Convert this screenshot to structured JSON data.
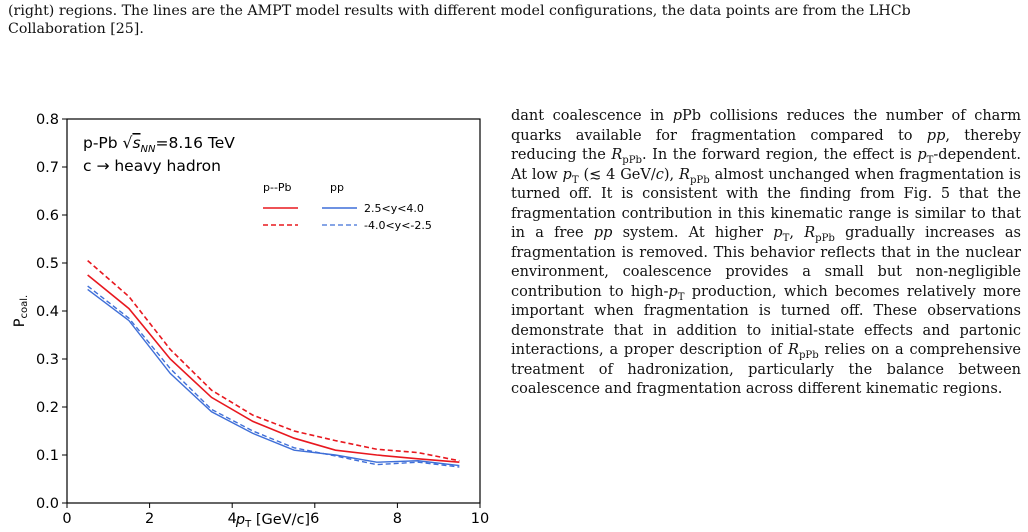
{
  "caption": {
    "line1": "(right) regions. The lines are the AMPT model results with different model configurations, the data points are from the LHCb",
    "line2": "Collaboration [25]."
  },
  "body_text": {
    "s1": "dant coalescence in ",
    "s2": "Pb collisions reduces the number of charm quarks available for fragmentation compared to ",
    "s3": ", thereby reducing the ",
    "s4": ". In the forward region, the effect is ",
    "s5": "-dependent. At low ",
    "s6": " (≲ 4 GeV/",
    "s7": "), ",
    "s8": " almost unchanged when fragmentation is turned off. It is consistent with the finding from Fig. 5 that the fragmentation contribution in this kinematic range is similar to that in a free ",
    "s9": " system. At higher ",
    "s10": ", ",
    "s11": " gradually increases as fragmentation is removed. This behavior reflects that in the nuclear environment, coalescence provides a small but non-negligible contribution to high-",
    "s12": " production, which becomes relatively more important when fragmentation is turned off. These observations demonstrate that in addition to initial-state effects and partonic interactions, a proper description of ",
    "s13": " relies on a comprehensive treatment of hadronization, particularly the balance between coalescence and fragmentation across different kinematic regions.",
    "p": "p",
    "pp": "pp",
    "R": "R",
    "pPb_sub": "pPb",
    "T_sub": "T",
    "c": "c"
  },
  "chart_data": {
    "type": "line",
    "title_line1_prefix": "p-Pb ",
    "title_line1_suffix": "=8.16 TeV",
    "title_line2": "c → heavy hadron",
    "xlabel_p": "p",
    "xlabel_sub": "T",
    "xlabel_unit": " [GeV/c]",
    "ylabel_main": "P",
    "ylabel_sub": "coal.",
    "xlim": [
      0,
      10
    ],
    "ylim": [
      0,
      0.8
    ],
    "x_ticks": [
      0,
      2,
      4,
      6,
      8,
      10
    ],
    "y_ticks": [
      0.0,
      0.1,
      0.2,
      0.3,
      0.4,
      0.5,
      0.6,
      0.7,
      0.8
    ],
    "legend": {
      "col1": "p--Pb",
      "col2": "pp",
      "row1": "2.5<y<4.0",
      "row2": "-4.0<y<-2.5",
      "placement": "top-right"
    },
    "x": [
      0.5,
      1.5,
      2.5,
      3.5,
      4.5,
      5.5,
      6.5,
      7.5,
      8.5,
      9.5
    ],
    "series": [
      {
        "system": "pPb",
        "rapidity": "forward",
        "color": "#e8181f",
        "dash": false,
        "values": [
          0.475,
          0.405,
          0.3,
          0.22,
          0.17,
          0.135,
          0.11,
          0.1,
          0.092,
          0.085
        ]
      },
      {
        "system": "pPb",
        "rapidity": "backward",
        "color": "#e8181f",
        "dash": true,
        "values": [
          0.505,
          0.43,
          0.32,
          0.235,
          0.183,
          0.15,
          0.13,
          0.112,
          0.105,
          0.088
        ]
      },
      {
        "system": "pp",
        "rapidity": "forward",
        "color": "#3f6fd8",
        "dash": false,
        "values": [
          0.445,
          0.38,
          0.27,
          0.19,
          0.145,
          0.11,
          0.1,
          0.085,
          0.088,
          0.078
        ]
      },
      {
        "system": "pp",
        "rapidity": "backward",
        "color": "#3f6fd8",
        "dash": true,
        "values": [
          0.452,
          0.385,
          0.28,
          0.195,
          0.15,
          0.115,
          0.098,
          0.08,
          0.085,
          0.075
        ]
      }
    ]
  }
}
